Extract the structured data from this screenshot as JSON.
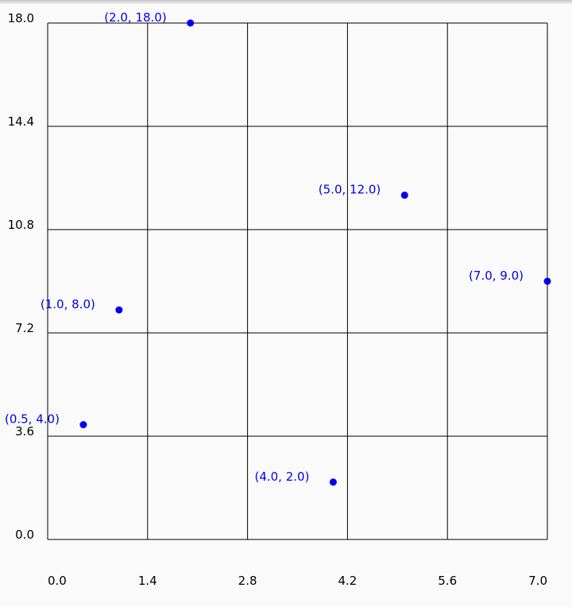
{
  "chart_data": {
    "type": "scatter",
    "xlim": [
      0.0,
      7.0
    ],
    "ylim": [
      0.0,
      18.0
    ],
    "x_ticks": [
      "0.0",
      "1.4",
      "2.8",
      "4.2",
      "5.6",
      "7.0"
    ],
    "y_ticks": [
      "0.0",
      "3.6",
      "7.2",
      "10.8",
      "14.4",
      "18.0"
    ],
    "grid": true,
    "point_color": "#0000ee",
    "grid_color": "#000000",
    "points": [
      {
        "x": 0.5,
        "y": 4.0,
        "label": "(0.5, 4.0)"
      },
      {
        "x": 1.0,
        "y": 8.0,
        "label": "(1.0, 8.0)"
      },
      {
        "x": 2.0,
        "y": 18.0,
        "label": "(2.0, 18.0)"
      },
      {
        "x": 4.0,
        "y": 2.0,
        "label": "(4.0, 2.0)"
      },
      {
        "x": 5.0,
        "y": 12.0,
        "label": "(5.0, 12.0)"
      },
      {
        "x": 7.0,
        "y": 9.0,
        "label": "(7.0, 9.0)"
      }
    ]
  }
}
